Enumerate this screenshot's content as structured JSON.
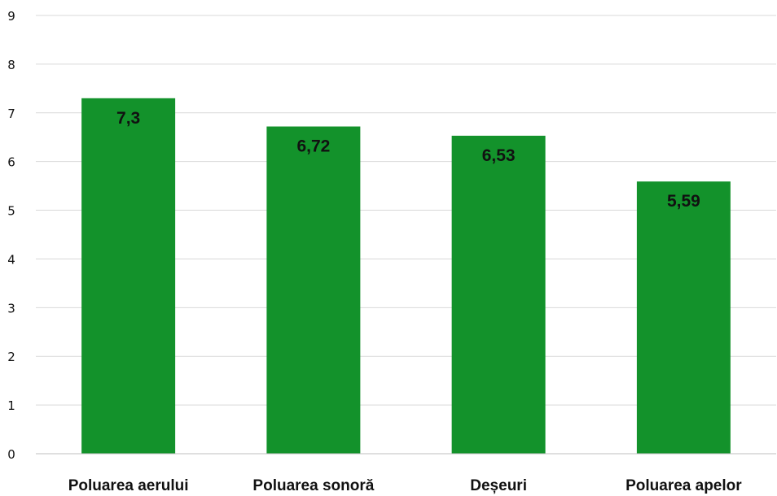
{
  "chart_data": {
    "type": "bar",
    "categories": [
      "Poluarea aerului",
      "Poluarea sonoră",
      "Deșeuri",
      "Poluarea apelor"
    ],
    "values": [
      7.3,
      6.72,
      6.53,
      5.59
    ],
    "data_labels": [
      "7,3",
      "6,72",
      "6,53",
      "5,59"
    ],
    "title": "",
    "xlabel": "",
    "ylabel": "",
    "ylim": [
      0,
      9
    ],
    "yticks": [
      0,
      1,
      2,
      3,
      4,
      5,
      6,
      7,
      8,
      9
    ],
    "grid": true,
    "legend": "none",
    "bar_color": "#13922b"
  }
}
